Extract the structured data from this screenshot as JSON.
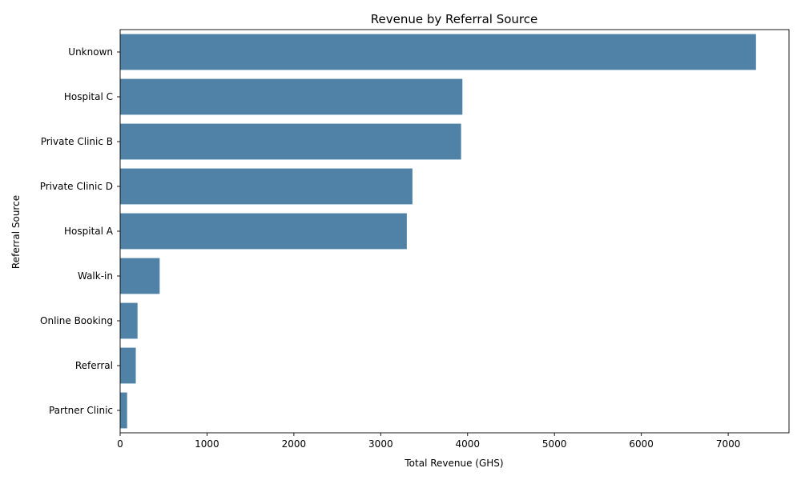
{
  "chart_data": {
    "type": "bar",
    "orientation": "horizontal",
    "title": "Revenue by Referral Source",
    "xlabel": "Total Revenue (GHS)",
    "ylabel": "Referral Source",
    "categories": [
      "Unknown",
      "Hospital C",
      "Private Clinic B",
      "Private Clinic D",
      "Hospital A",
      "Walk-in",
      "Online Booking",
      "Referral",
      "Partner Clinic"
    ],
    "values": [
      7320,
      3940,
      3925,
      3365,
      3300,
      455,
      200,
      180,
      80
    ],
    "xlim": [
      0,
      7700
    ],
    "xticks": [
      0,
      1000,
      2000,
      3000,
      4000,
      5000,
      6000,
      7000
    ],
    "grid": false,
    "bar_color": "#5082a8"
  }
}
